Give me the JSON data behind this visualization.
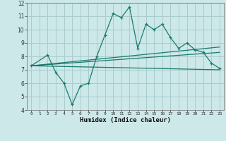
{
  "title": "",
  "xlabel": "Humidex (Indice chaleur)",
  "background_color": "#cce8e8",
  "grid_color": "#aacccc",
  "line_color": "#1a7a6e",
  "xlim": [
    -0.5,
    23.5
  ],
  "ylim": [
    4,
    12
  ],
  "xticks": [
    0,
    1,
    2,
    3,
    4,
    5,
    6,
    7,
    8,
    9,
    10,
    11,
    12,
    13,
    14,
    15,
    16,
    17,
    18,
    19,
    20,
    21,
    22,
    23
  ],
  "yticks": [
    4,
    5,
    6,
    7,
    8,
    9,
    10,
    11,
    12
  ],
  "series1_x": [
    0,
    2,
    3,
    4,
    5,
    6,
    7,
    8,
    9,
    10,
    11,
    12,
    13,
    14,
    15,
    16,
    17,
    18,
    19,
    20,
    21,
    22,
    23
  ],
  "series1_y": [
    7.3,
    8.1,
    6.8,
    6.0,
    4.4,
    5.8,
    6.0,
    8.0,
    9.6,
    11.2,
    10.9,
    11.7,
    8.6,
    10.4,
    10.0,
    10.4,
    9.4,
    8.6,
    9.0,
    8.5,
    8.3,
    7.5,
    7.1
  ],
  "series2_x": [
    0,
    23
  ],
  "series2_y": [
    7.3,
    7.0
  ],
  "series3_x": [
    0,
    23
  ],
  "series3_y": [
    7.3,
    8.3
  ],
  "series4_x": [
    0,
    23
  ],
  "series4_y": [
    7.3,
    8.7
  ]
}
